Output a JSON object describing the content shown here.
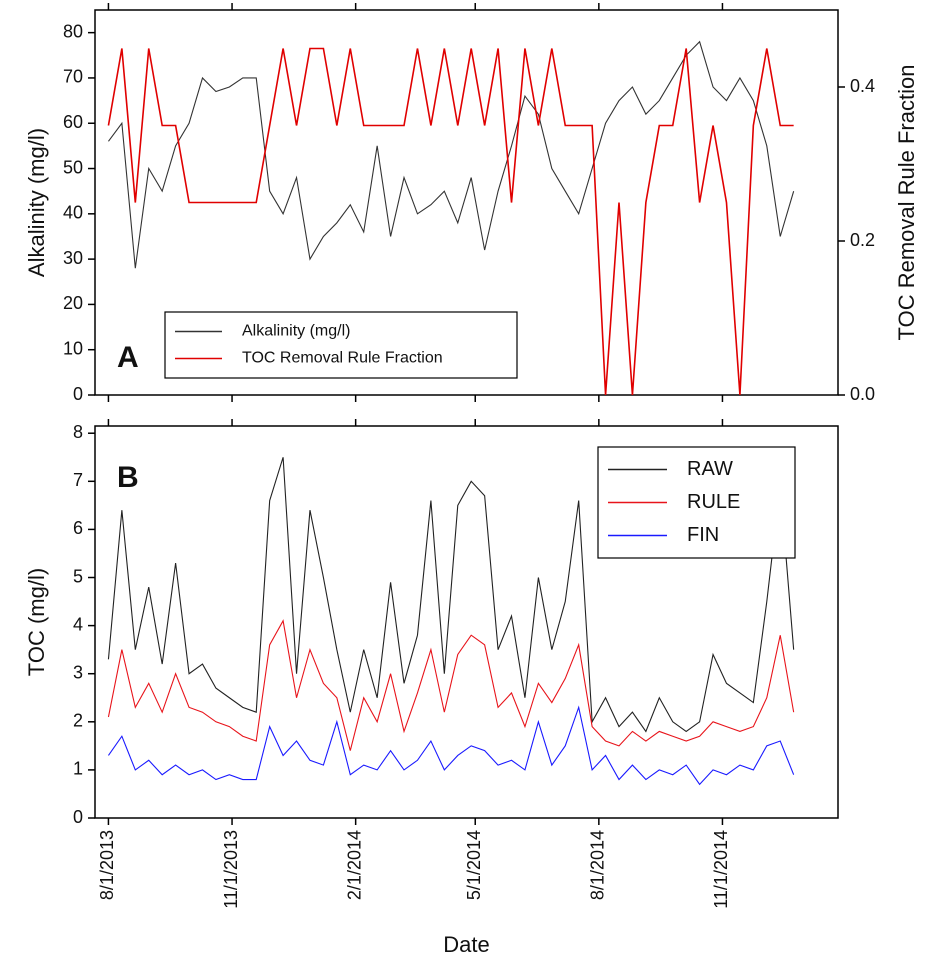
{
  "chart_data": [
    {
      "type": "line",
      "annotation": "A",
      "y_label": "Alkalinity (mg/l)",
      "y2_label": "TOC Removal Rule Fraction",
      "x": [
        "8/1/2013",
        "8/11/2013",
        "8/21/2013",
        "8/31/2013",
        "9/10/2013",
        "9/20/2013",
        "9/30/2013",
        "10/10/2013",
        "10/20/2013",
        "10/30/2013",
        "11/9/2013",
        "11/19/2013",
        "11/29/2013",
        "12/9/2013",
        "12/19/2013",
        "12/29/2013",
        "1/8/2014",
        "1/18/2014",
        "1/28/2014",
        "2/7/2014",
        "2/17/2014",
        "2/27/2014",
        "3/9/2014",
        "3/19/2014",
        "3/29/2014",
        "4/8/2014",
        "4/18/2014",
        "4/28/2014",
        "5/8/2014",
        "5/18/2014",
        "5/28/2014",
        "6/7/2014",
        "6/17/2014",
        "6/27/2014",
        "7/7/2014",
        "7/17/2014",
        "7/27/2014",
        "8/6/2014",
        "8/16/2014",
        "8/26/2014",
        "9/5/2014",
        "9/15/2014",
        "9/25/2014",
        "10/5/2014",
        "10/15/2014",
        "10/25/2014",
        "11/4/2014",
        "11/14/2014",
        "11/24/2014",
        "12/4/2014",
        "12/14/2014",
        "12/24/2014"
      ],
      "xlim": [
        "7/22/2013",
        "1/26/2015"
      ],
      "xticks": [
        "8/1/2013",
        "11/1/2013",
        "2/1/2014",
        "5/1/2014",
        "8/1/2014",
        "11/1/2014"
      ],
      "ylim": [
        0,
        85
      ],
      "yticks": [
        0,
        10,
        20,
        30,
        40,
        50,
        60,
        70,
        80
      ],
      "y2lim": [
        0,
        0.5
      ],
      "y2ticks": [
        {
          "value": 0,
          "label": "0.0"
        },
        0.2,
        0.4
      ],
      "legend": "lower left",
      "series": [
        {
          "name": "Alkalinity (mg/l)",
          "color": "#333333",
          "values": [
            56,
            60,
            28,
            50,
            45,
            55,
            60,
            70,
            67,
            68,
            70,
            70,
            45,
            40,
            48,
            30,
            35,
            38,
            42,
            36,
            55,
            35,
            48,
            40,
            42,
            45,
            38,
            48,
            32,
            45,
            55,
            66,
            62,
            50,
            45,
            40,
            50,
            60,
            65,
            68,
            62,
            65,
            70,
            75,
            78,
            68,
            65,
            70,
            65,
            55,
            35,
            45
          ]
        },
        {
          "name": "TOC Removal Rule Fraction",
          "color": "#e00000",
          "axis": "y2",
          "values": [
            0.35,
            0.45,
            0.25,
            0.45,
            0.35,
            0.35,
            0.25,
            0.25,
            0.25,
            0.25,
            0.25,
            0.25,
            0.35,
            0.45,
            0.35,
            0.45,
            0.45,
            0.35,
            0.45,
            0.35,
            0.35,
            0.35,
            0.35,
            0.45,
            0.35,
            0.45,
            0.35,
            0.45,
            0.35,
            0.45,
            0.25,
            0.45,
            0.35,
            0.45,
            0.35,
            0.35,
            0.35,
            0,
            0.25,
            0,
            0.25,
            0.35,
            0.35,
            0.45,
            0.25,
            0.35,
            0.25,
            0,
            0.35,
            0.45,
            0.35,
            0.35
          ]
        }
      ]
    },
    {
      "type": "line",
      "annotation": "B",
      "y_label": "TOC (mg/l)",
      "x_label": "Date",
      "x": [
        "8/1/2013",
        "8/11/2013",
        "8/21/2013",
        "8/31/2013",
        "9/10/2013",
        "9/20/2013",
        "9/30/2013",
        "10/10/2013",
        "10/20/2013",
        "10/30/2013",
        "11/9/2013",
        "11/19/2013",
        "11/29/2013",
        "12/9/2013",
        "12/19/2013",
        "12/29/2013",
        "1/8/2014",
        "1/18/2014",
        "1/28/2014",
        "2/7/2014",
        "2/17/2014",
        "2/27/2014",
        "3/9/2014",
        "3/19/2014",
        "3/29/2014",
        "4/8/2014",
        "4/18/2014",
        "4/28/2014",
        "5/8/2014",
        "5/18/2014",
        "5/28/2014",
        "6/7/2014",
        "6/17/2014",
        "6/27/2014",
        "7/7/2014",
        "7/17/2014",
        "7/27/2014",
        "8/6/2014",
        "8/16/2014",
        "8/26/2014",
        "9/5/2014",
        "9/15/2014",
        "9/25/2014",
        "10/5/2014",
        "10/15/2014",
        "10/25/2014",
        "11/4/2014",
        "11/14/2014",
        "11/24/2014",
        "12/4/2014",
        "12/14/2014",
        "12/24/2014"
      ],
      "xlim": [
        "7/22/2013",
        "1/26/2015"
      ],
      "xticks": [
        "8/1/2013",
        "11/1/2013",
        "2/1/2014",
        "5/1/2014",
        "8/1/2014",
        "11/1/2014"
      ],
      "ylim": [
        0,
        8.15
      ],
      "yticks": [
        0,
        1,
        2,
        3,
        4,
        5,
        6,
        7,
        8
      ],
      "legend": "upper right",
      "series": [
        {
          "name": "RAW",
          "color": "#222222",
          "values": [
            3.3,
            6.4,
            3.5,
            4.8,
            3.2,
            5.3,
            3.0,
            3.2,
            2.7,
            2.5,
            2.3,
            2.2,
            6.6,
            7.5,
            3.0,
            6.4,
            5.0,
            3.5,
            2.2,
            3.5,
            2.5,
            4.9,
            2.8,
            3.8,
            6.6,
            3.0,
            6.5,
            7.0,
            6.7,
            3.5,
            4.2,
            2.5,
            5.0,
            3.5,
            4.5,
            6.6,
            2.0,
            2.5,
            1.9,
            2.2,
            1.8,
            2.5,
            2.0,
            1.8,
            2.0,
            3.4,
            2.8,
            2.6,
            2.4,
            4.5,
            6.9,
            3.5
          ]
        },
        {
          "name": "RULE",
          "color": "#e8141b",
          "values": [
            2.1,
            3.5,
            2.3,
            2.8,
            2.2,
            3.0,
            2.3,
            2.2,
            2.0,
            1.9,
            1.7,
            1.6,
            3.6,
            4.1,
            2.5,
            3.5,
            2.8,
            2.5,
            1.4,
            2.5,
            2.0,
            3.0,
            1.8,
            2.6,
            3.5,
            2.2,
            3.4,
            3.8,
            3.6,
            2.3,
            2.6,
            1.9,
            2.8,
            2.4,
            2.9,
            3.6,
            1.9,
            1.6,
            1.5,
            1.8,
            1.6,
            1.8,
            1.7,
            1.6,
            1.7,
            2.0,
            1.9,
            1.8,
            1.9,
            2.5,
            3.8,
            2.2
          ]
        },
        {
          "name": "FIN",
          "color": "#1a1aff",
          "values": [
            1.3,
            1.7,
            1.0,
            1.2,
            0.9,
            1.1,
            0.9,
            1.0,
            0.8,
            0.9,
            0.8,
            0.8,
            1.9,
            1.3,
            1.6,
            1.2,
            1.1,
            2.0,
            0.9,
            1.1,
            1.0,
            1.4,
            1.0,
            1.2,
            1.6,
            1.0,
            1.3,
            1.5,
            1.4,
            1.1,
            1.2,
            1.0,
            2.0,
            1.1,
            1.5,
            2.3,
            1.0,
            1.3,
            0.8,
            1.1,
            0.8,
            1.0,
            0.9,
            1.1,
            0.7,
            1.0,
            0.9,
            1.1,
            1.0,
            1.5,
            1.6,
            0.9
          ]
        }
      ]
    }
  ]
}
